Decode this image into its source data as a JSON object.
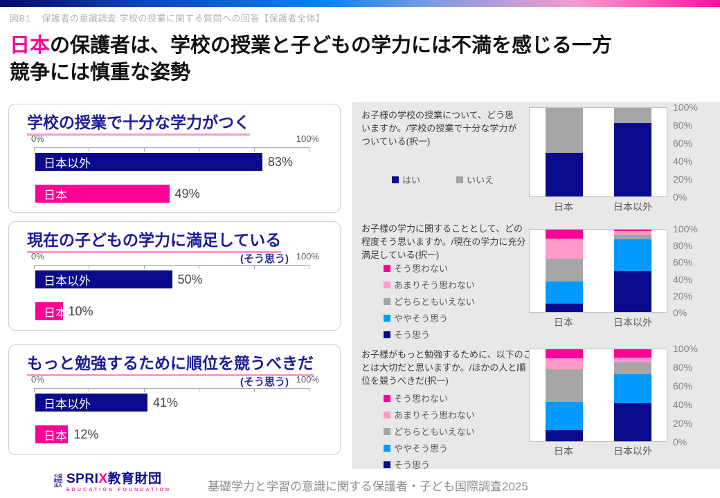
{
  "colors": {
    "navy": "#0a0a8c",
    "magenta": "#ff0096",
    "pink": "#ff9ac9",
    "gray": "#a6a6a6",
    "azure": "#009bff"
  },
  "header": {
    "tag": "図B1",
    "subtitle": "保護者の意識調査:学校の授業に関する質問への回答【保護者全体】"
  },
  "title": {
    "highlight": "日本",
    "line1_rest": "の保護者は、学校の授業と子どもの学力には不満を感じる一方",
    "line2": "競争には慎重な姿勢"
  },
  "chart_data": [
    {
      "type": "bar",
      "title": "学校の授業で十分な学力がつく",
      "subtitle": "",
      "axis_min_label": "0%",
      "axis_max_label": "100%",
      "xlim": [
        0,
        100
      ],
      "bars": [
        {
          "label": "日本以外",
          "value": 83,
          "value_label": "83%",
          "color": "navy"
        },
        {
          "label": "日本",
          "value": 49,
          "value_label": "49%",
          "color": "magenta"
        }
      ]
    },
    {
      "type": "bar",
      "title": "現在の子どもの学力に満足している",
      "subtitle": "(そう思う)",
      "axis_min_label": "0%",
      "axis_max_label": "100%",
      "xlim": [
        0,
        100
      ],
      "bars": [
        {
          "label": "日本以外",
          "value": 50,
          "value_label": "50%",
          "color": "navy"
        },
        {
          "label": "日本",
          "value": 10,
          "value_label": "10%",
          "color": "magenta"
        }
      ]
    },
    {
      "type": "bar",
      "title": "もっと勉強するために順位を競うべきだ",
      "subtitle": "(そう思う)",
      "axis_min_label": "0%",
      "axis_max_label": "100%",
      "xlim": [
        0,
        100
      ],
      "bars": [
        {
          "label": "日本以外",
          "value": 41,
          "value_label": "41%",
          "color": "navy"
        },
        {
          "label": "日本",
          "value": 12,
          "value_label": "12%",
          "color": "magenta"
        }
      ]
    },
    {
      "type": "stacked-bar",
      "question": "お子様の学校の授業について、どう思いますか。/学校の授業で十分な学力がついている(択一)",
      "categories": [
        "日本",
        "日本以外"
      ],
      "ylabels": [
        "100%",
        "80%",
        "60%",
        "40%",
        "20%",
        "0%"
      ],
      "ylim": [
        0,
        100
      ],
      "legend": [
        {
          "label": "はい",
          "color": "navy"
        },
        {
          "label": "いいえ",
          "color": "gray"
        }
      ],
      "series_order": "bottom-to-top",
      "series": [
        {
          "name": "はい",
          "color": "navy",
          "values": [
            49,
            83
          ]
        },
        {
          "name": "いいえ",
          "color": "gray",
          "values": [
            51,
            17
          ]
        }
      ]
    },
    {
      "type": "stacked-bar",
      "question": "お子様の学力に関することとして、どの程度そう思いますか。/現在の学力に充分満足している(択一)",
      "categories": [
        "日本",
        "日本以外"
      ],
      "ylabels": [
        "100%",
        "80%",
        "60%",
        "40%",
        "20%",
        "0%"
      ],
      "ylim": [
        0,
        100
      ],
      "legend": [
        {
          "label": "そう思わない",
          "color": "magenta"
        },
        {
          "label": "あまりそう思わない",
          "color": "pink"
        },
        {
          "label": "どちらともいえない",
          "color": "gray"
        },
        {
          "label": "ややそう思う",
          "color": "azure"
        },
        {
          "label": "そう思う",
          "color": "navy"
        }
      ],
      "series_order": "bottom-to-top",
      "series": [
        {
          "name": "そう思う",
          "color": "navy",
          "values": [
            10,
            50
          ]
        },
        {
          "name": "ややそう思う",
          "color": "azure",
          "values": [
            27,
            38
          ]
        },
        {
          "name": "どちらともいえない",
          "color": "gray",
          "values": [
            28,
            6
          ]
        },
        {
          "name": "あまりそう思わない",
          "color": "pink",
          "values": [
            24,
            4
          ]
        },
        {
          "name": "そう思わない",
          "color": "magenta",
          "values": [
            11,
            2
          ]
        }
      ]
    },
    {
      "type": "stacked-bar",
      "question": "お子様がもっと勉強するために、以下のことは大切だと思いますか。/ほかの人と順位を競うべきだ(択一)",
      "categories": [
        "日本",
        "日本以外"
      ],
      "ylabels": [
        "100%",
        "80%",
        "60%",
        "40%",
        "20%",
        "0%"
      ],
      "ylim": [
        0,
        100
      ],
      "legend": [
        {
          "label": "そう思わない",
          "color": "magenta"
        },
        {
          "label": "あまりそう思わない",
          "color": "pink"
        },
        {
          "label": "どちらともいえない",
          "color": "gray"
        },
        {
          "label": "ややそう思う",
          "color": "azure"
        },
        {
          "label": "そう思う",
          "color": "navy"
        }
      ],
      "series_order": "bottom-to-top",
      "series": [
        {
          "name": "そう思う",
          "color": "navy",
          "values": [
            12,
            41
          ]
        },
        {
          "name": "ややそう思う",
          "color": "azure",
          "values": [
            31,
            32
          ]
        },
        {
          "name": "どちらともいえない",
          "color": "gray",
          "values": [
            35,
            13
          ]
        },
        {
          "name": "あまりそう思わない",
          "color": "pink",
          "values": [
            12,
            5
          ]
        },
        {
          "name": "そう思わない",
          "color": "magenta",
          "values": [
            10,
            9
          ]
        }
      ]
    }
  ],
  "footer": {
    "logo_prefix": "公益財団法人",
    "logo_sprix": "SPRI",
    "logo_x": "X",
    "logo_suffix": "教育財団",
    "logo_sub": "EDUCATION FOUNDATION",
    "source": "基礎学力と学習の意識に関する保護者・子ども国際調査2025"
  }
}
